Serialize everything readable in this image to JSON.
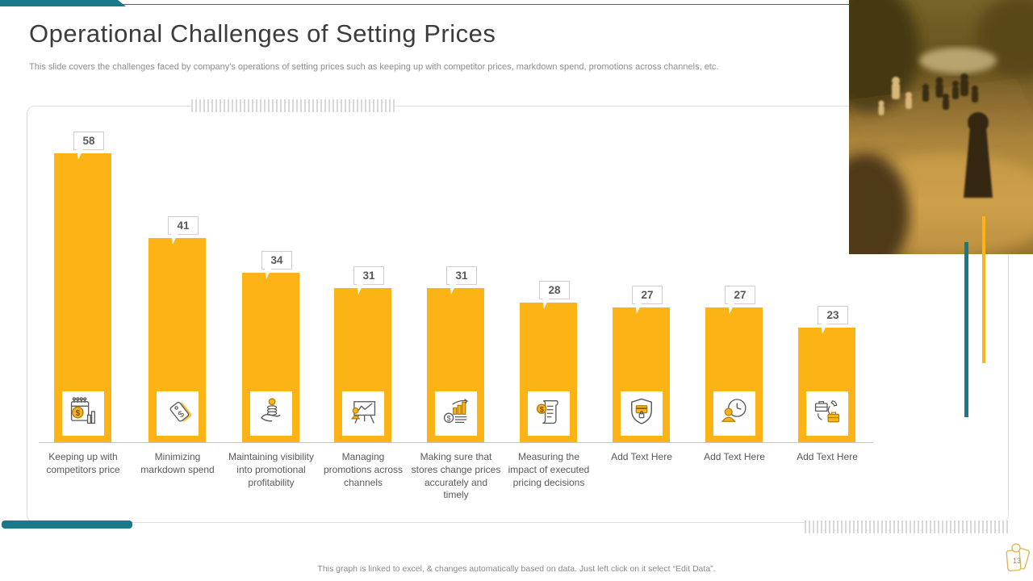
{
  "slide": {
    "title": "Operational Challenges of Setting Prices",
    "subtitle": "This slide covers the challenges faced by company's operations of setting prices such as keeping up with competitor prices, markdown spend, promotions across channels, etc.",
    "footer_note": "This graph is linked to excel, & changes automatically based on data. Just left click on it select “Edit Data”.",
    "page_number": "13"
  },
  "colors": {
    "accent_teal": "#17798A",
    "accent_yellow": "#FCB316",
    "title_text": "#3C3C3C",
    "body_text": "#8E8E8E",
    "label_text": "#595959",
    "frame_border": "#DEDEDE"
  },
  "chart_data": {
    "type": "bar",
    "title": "",
    "xlabel": "",
    "ylabel": "",
    "categories": [
      "Keeping up with competitors price",
      "Minimizing markdown spend",
      "Maintaining visibility into promotional profitability",
      "Managing promotions across channels",
      "Making sure that stores change prices accurately and timely",
      "Measuring the impact of executed pricing decisions",
      "Add Text Here",
      "Add Text Here",
      "Add Text Here"
    ],
    "values": [
      58,
      41,
      34,
      31,
      31,
      28,
      27,
      27,
      23
    ],
    "data_labels": [
      58,
      41,
      34,
      31,
      31,
      28,
      27,
      27,
      23
    ],
    "icons": [
      "calendar-price-analysis-icon",
      "price-tag-icon",
      "hand-coins-icon",
      "promotion-presentation-icon",
      "sales-growth-icon",
      "pricing-invoice-icon",
      "secure-payment-shield-icon",
      "person-time-icon",
      "briefcase-contact-icon"
    ],
    "bar_color": "#FCB316",
    "ylim": [
      0,
      65
    ],
    "grid": false,
    "legend": false
  },
  "photo": {
    "description": "chess-board-photo"
  }
}
